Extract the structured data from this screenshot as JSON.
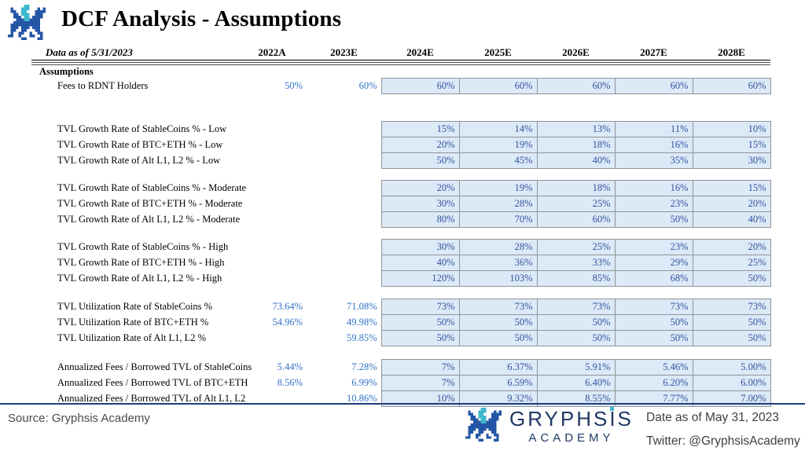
{
  "header": {
    "title": "DCF Analysis - Assumptions"
  },
  "table": {
    "date_label": "Data as of 5/31/2023",
    "columns": [
      "2022A",
      "2023E",
      "2024E",
      "2025E",
      "2026E",
      "2027E",
      "2028E"
    ],
    "section_label": "Assumptions",
    "shaded_start_col": 2,
    "groups": [
      {
        "name": "fees-to-rdnt-holders",
        "rows": [
          {
            "label": "Fees to RDNT Holders",
            "values": [
              "50%",
              "60%",
              "60%",
              "60%",
              "60%",
              "60%",
              "60%"
            ]
          }
        ]
      },
      {
        "name": "tvl-growth-low",
        "rows": [
          {
            "label": "TVL Growth Rate of StableCoins % - Low",
            "values": [
              "",
              "",
              "15%",
              "14%",
              "13%",
              "11%",
              "10%"
            ]
          },
          {
            "label": "TVL Growth Rate of BTC+ETH % - Low",
            "values": [
              "",
              "",
              "20%",
              "19%",
              "18%",
              "16%",
              "15%"
            ]
          },
          {
            "label": "TVL Growth Rate of Alt L1, L2 % - Low",
            "values": [
              "",
              "",
              "50%",
              "45%",
              "40%",
              "35%",
              "30%"
            ]
          }
        ]
      },
      {
        "name": "tvl-growth-moderate",
        "rows": [
          {
            "label": "TVL Growth Rate of StableCoins % - Moderate",
            "values": [
              "",
              "",
              "20%",
              "19%",
              "18%",
              "16%",
              "15%"
            ]
          },
          {
            "label": "TVL Growth Rate of BTC+ETH % - Moderate",
            "values": [
              "",
              "",
              "30%",
              "28%",
              "25%",
              "23%",
              "20%"
            ]
          },
          {
            "label": "TVL Growth Rate of Alt L1, L2 % - Moderate",
            "values": [
              "",
              "",
              "80%",
              "70%",
              "60%",
              "50%",
              "40%"
            ]
          }
        ]
      },
      {
        "name": "tvl-growth-high",
        "rows": [
          {
            "label": "TVL Growth Rate of StableCoins % - High",
            "values": [
              "",
              "",
              "30%",
              "28%",
              "25%",
              "23%",
              "20%"
            ]
          },
          {
            "label": "TVL Growth Rate of BTC+ETH % - High",
            "values": [
              "",
              "",
              "40%",
              "36%",
              "33%",
              "29%",
              "25%"
            ]
          },
          {
            "label": "TVL Growth Rate of Alt L1, L2 % - High",
            "values": [
              "",
              "",
              "120%",
              "103%",
              "85%",
              "68%",
              "50%"
            ]
          }
        ]
      },
      {
        "name": "tvl-utilization",
        "rows": [
          {
            "label": "TVL Utilization Rate of StableCoins %",
            "values": [
              "73.64%",
              "71.08%",
              "73%",
              "73%",
              "73%",
              "73%",
              "73%"
            ]
          },
          {
            "label": "TVL Utilization Rate of BTC+ETH %",
            "values": [
              "54.96%",
              "49.98%",
              "50%",
              "50%",
              "50%",
              "50%",
              "50%"
            ]
          },
          {
            "label": "TVL Utilization Rate of Alt L1, L2 %",
            "values": [
              "",
              "59.85%",
              "50%",
              "50%",
              "50%",
              "50%",
              "50%"
            ]
          }
        ]
      },
      {
        "name": "annualized-fees-borrowed-tvl",
        "rows": [
          {
            "label": "Annualized Fees / Borrowed TVL of StableCoins",
            "values": [
              "5.44%",
              "7.28%",
              "7%",
              "6.37%",
              "5.91%",
              "5.46%",
              "5.00%"
            ]
          },
          {
            "label": "Annualized Fees / Borrowed TVL of BTC+ETH",
            "values": [
              "8.56%",
              "6.99%",
              "7%",
              "6.59%",
              "6.40%",
              "6.20%",
              "6.00%"
            ]
          },
          {
            "label": "Annualized Fees / Borrowed TVL of Alt L1, L2",
            "values": [
              "",
              "10.86%",
              "10%",
              "9.32%",
              "8.55%",
              "7.77%",
              "7.00%"
            ]
          }
        ]
      }
    ]
  },
  "footer": {
    "source": "Source: Gryphsis Academy",
    "brand_name": "GRYPHSIS",
    "brand_sub": "ACADEMY",
    "date_note": "Date as of May 31, 2023",
    "twitter": "Twitter: @GryphsisAcademy"
  },
  "colors": {
    "cell_fill": "#DCE9F7",
    "cell_border": "#909499",
    "value_blue_plain": "#3273C8",
    "value_blue_shaded": "#33539E",
    "brand_navy": "#1F3864",
    "footer_rule_navy": "#1F3D7A",
    "logo_blue": "#2456A6",
    "logo_teal": "#3FB8CE"
  }
}
